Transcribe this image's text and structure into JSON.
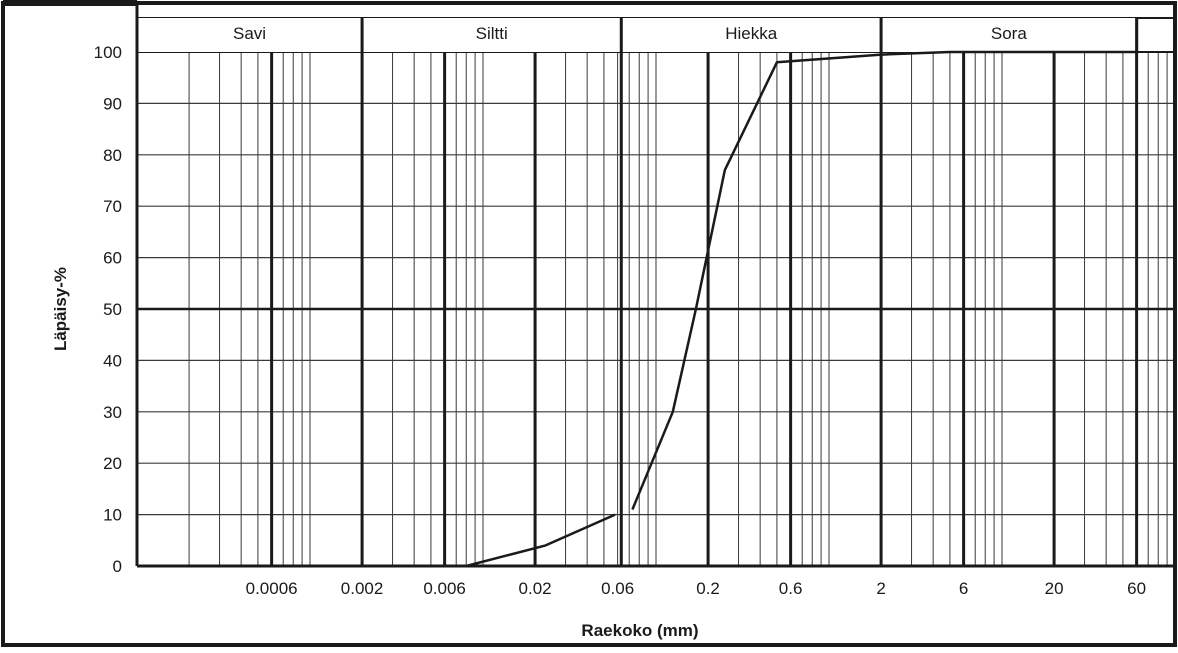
{
  "chart_data": {
    "type": "line",
    "title": "",
    "xlabel": "Raekoko (mm)",
    "ylabel": "Läpäisy-%",
    "x_scale": "log",
    "xlim": [
      0.0001,
      100
    ],
    "ylim": [
      0,
      100
    ],
    "grid": true,
    "x_tick_labels": [
      {
        "value": 0.0006,
        "label": "0.0006"
      },
      {
        "value": 0.002,
        "label": "0.002"
      },
      {
        "value": 0.006,
        "label": "0.006"
      },
      {
        "value": 0.02,
        "label": "0.02"
      },
      {
        "value": 0.06,
        "label": "0.06"
      },
      {
        "value": 0.2,
        "label": "0.2"
      },
      {
        "value": 0.6,
        "label": "0.6"
      },
      {
        "value": 2,
        "label": "2"
      },
      {
        "value": 6,
        "label": "6"
      },
      {
        "value": 20,
        "label": "20"
      },
      {
        "value": 60,
        "label": "60"
      }
    ],
    "y_ticks": [
      0,
      10,
      20,
      30,
      40,
      50,
      60,
      70,
      80,
      90,
      100
    ],
    "bands": [
      {
        "label": "Savi",
        "from": 0.0001,
        "to": 0.002
      },
      {
        "label": "Siltti",
        "from": 0.002,
        "to": 0.063
      },
      {
        "label": "Hiekka",
        "from": 0.063,
        "to": 2
      },
      {
        "label": "Sora",
        "from": 2,
        "to": 60
      }
    ],
    "series": [
      {
        "segments": [
          {
            "x": [
              0.008,
              0.023,
              0.058
            ],
            "y": [
              0,
              4,
              10
            ]
          },
          {
            "x": [
              0.073,
              0.125,
              0.17,
              0.25,
              0.5,
              2,
              5,
              60
            ],
            "y": [
              11,
              30,
              50,
              77,
              98,
              99.5,
              100,
              100
            ]
          }
        ]
      }
    ]
  }
}
